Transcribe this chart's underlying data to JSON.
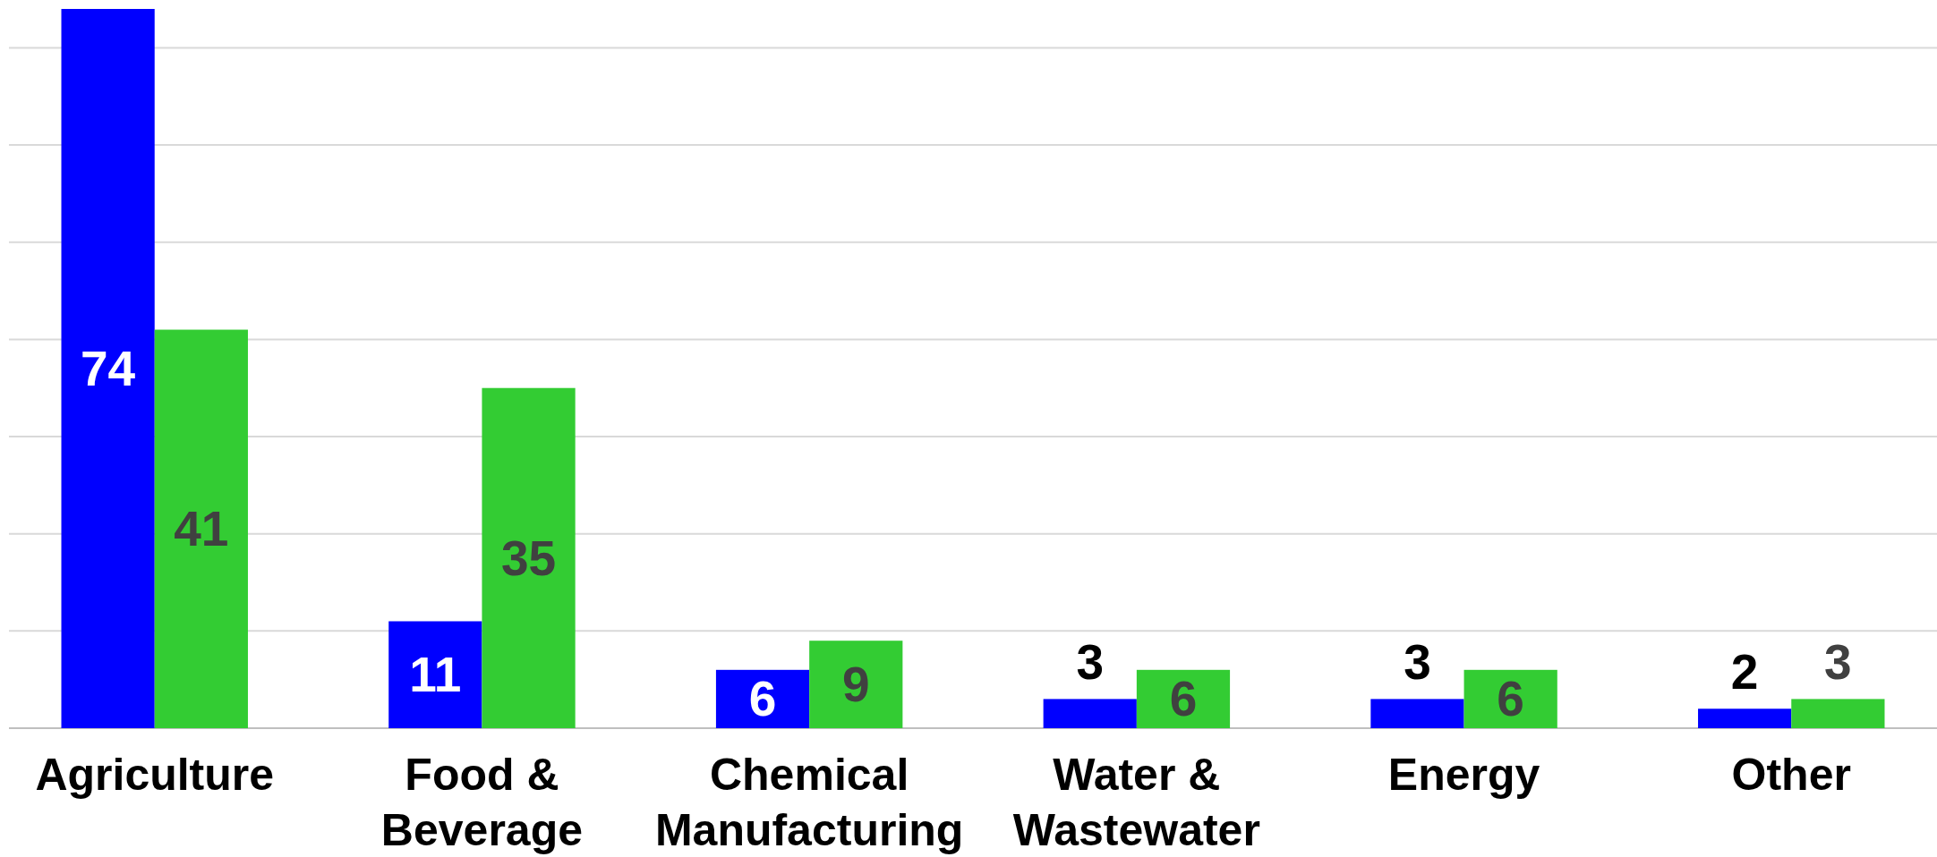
{
  "chart_data": {
    "type": "bar",
    "categories": [
      "Agriculture",
      "Food & Beverage",
      "Chemical Manufacturing",
      "Water & Wastewater",
      "Energy",
      "Other"
    ],
    "series": [
      {
        "color": "#0000ff",
        "values": [
          74,
          11,
          6,
          3,
          3,
          2
        ]
      },
      {
        "color": "#33cc33",
        "values": [
          41,
          35,
          9,
          6,
          6,
          3
        ]
      }
    ],
    "ylim": [
      0,
      74
    ],
    "yticks": [
      {
        "value": 0,
        "label": null
      },
      {
        "value": 10,
        "label": null
      },
      {
        "value": 20,
        "label": null
      },
      {
        "value": 30,
        "label": null
      },
      {
        "value": 40,
        "label": null
      },
      {
        "value": 50,
        "label": null
      },
      {
        "value": 60,
        "label": null
      },
      {
        "value": 70,
        "label": null
      }
    ],
    "tick_labels": "x",
    "grid": "y",
    "data_labels": true
  }
}
